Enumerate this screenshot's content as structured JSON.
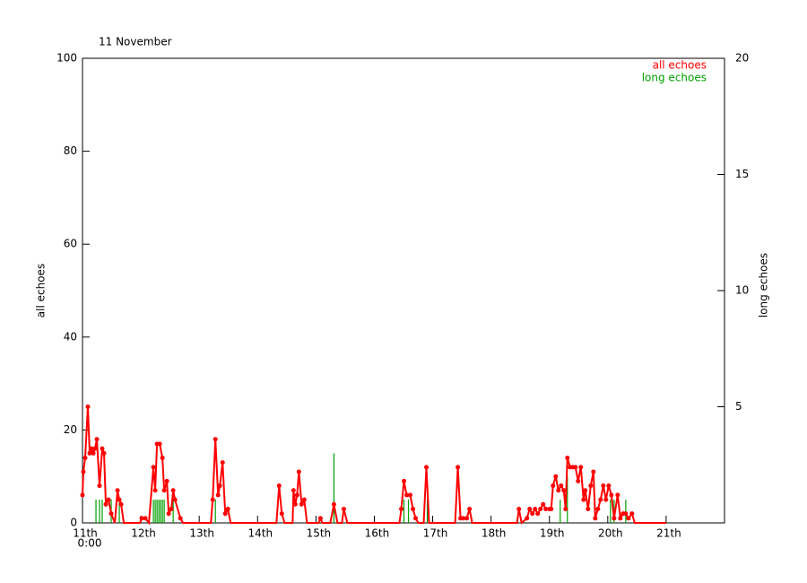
{
  "chart_data": {
    "type": "line",
    "title": "11 November",
    "ylabel": "all echoes",
    "y2label": "long echoes",
    "xlim": [
      0,
      11
    ],
    "ylim": [
      0,
      100
    ],
    "y2lim": [
      0,
      20
    ],
    "x_origin_label": "0:00",
    "xticks": [
      {
        "value": 0,
        "label": "11th"
      },
      {
        "value": 1,
        "label": "12th"
      },
      {
        "value": 2,
        "label": "13th"
      },
      {
        "value": 3,
        "label": "14th"
      },
      {
        "value": 4,
        "label": "15th"
      },
      {
        "value": 5,
        "label": "16th"
      },
      {
        "value": 6,
        "label": "17th"
      },
      {
        "value": 7,
        "label": "18th"
      },
      {
        "value": 8,
        "label": "19th"
      },
      {
        "value": 9,
        "label": "20th"
      },
      {
        "value": 10,
        "label": "21th"
      }
    ],
    "yticks": [
      0,
      20,
      40,
      60,
      80,
      100
    ],
    "y2ticks": [
      5,
      10,
      15,
      20
    ],
    "legend": "upper right",
    "series": [
      {
        "name": "all echoes",
        "color": "#ff0000",
        "mark": "line",
        "x": [
          0,
          0.015,
          0.046,
          0.092,
          0.123,
          0.154,
          0.185,
          0.215,
          0.246,
          0.292,
          0.338,
          0.369,
          0.4,
          0.446,
          0.492,
          0.554,
          0.6,
          0.631,
          0.662,
          0.708,
          0.985,
          1.015,
          1.077,
          1.138,
          1.215,
          1.246,
          1.277,
          1.323,
          1.369,
          1.4,
          1.446,
          1.477,
          1.523,
          1.554,
          1.585,
          1.677,
          1.723,
          2.2,
          2.231,
          2.277,
          2.323,
          2.354,
          2.4,
          2.446,
          2.492,
          2.538,
          3.323,
          3.369,
          3.415,
          3.462,
          3.6,
          3.615,
          3.646,
          3.677,
          3.708,
          3.754,
          3.8,
          3.846,
          4.046,
          4.077,
          4.108,
          4.246,
          4.308,
          4.369,
          4.446,
          4.477,
          4.538,
          5.431,
          5.462,
          5.508,
          5.554,
          5.615,
          5.662,
          5.708,
          5.754,
          5.846,
          5.892,
          5.938,
          6.385,
          6.431,
          6.477,
          6.523,
          6.585,
          6.631,
          6.677,
          7.446,
          7.477,
          7.523,
          7.615,
          7.662,
          7.708,
          7.754,
          7.8,
          7.846,
          7.892,
          7.938,
          8.0,
          8.031,
          8.062,
          8.108,
          8.154,
          8.2,
          8.246,
          8.277,
          8.308,
          8.354,
          8.4,
          8.446,
          8.492,
          8.538,
          8.585,
          8.615,
          8.662,
          8.708,
          8.754,
          8.785,
          8.831,
          8.877,
          8.923,
          8.969,
          9.015,
          9.062,
          9.108,
          9.169,
          9.215,
          9.262,
          9.308,
          9.354,
          9.415,
          9.462,
          10.0
        ],
        "values": [
          6,
          11,
          14,
          25,
          15,
          16,
          15,
          16,
          18,
          8,
          16,
          15,
          4,
          5,
          2,
          0,
          7,
          5,
          4,
          0,
          0,
          1,
          1,
          0,
          12,
          7,
          17,
          17,
          14,
          7,
          9,
          2,
          3,
          7,
          5,
          1,
          0,
          0,
          5,
          18,
          6,
          8,
          13,
          2,
          3,
          0,
          0,
          8,
          2,
          0,
          0,
          7,
          4,
          6,
          11,
          4,
          5,
          0,
          0,
          1,
          0,
          0,
          4,
          0,
          0,
          3,
          0,
          0,
          3,
          9,
          6,
          6,
          3,
          1,
          0,
          0,
          12,
          0,
          0,
          12,
          1,
          1,
          1,
          3,
          0,
          0,
          3,
          0,
          1,
          3,
          2,
          3,
          2,
          3,
          4,
          3,
          3,
          3,
          8,
          10,
          7,
          8,
          7,
          3,
          14,
          12,
          12,
          12,
          9,
          12,
          5,
          7,
          3,
          8,
          11,
          1,
          3,
          5,
          8,
          5,
          8,
          6,
          1,
          6,
          1,
          2,
          2,
          1,
          2,
          0,
          0
        ]
      },
      {
        "name": "long echoes",
        "color": "#00a000",
        "mark": "bar",
        "axis": "y2",
        "x": [
          0.231,
          0.292,
          0.338,
          0.492,
          0.631,
          1.215,
          1.246,
          1.277,
          1.308,
          1.338,
          1.369,
          1.4,
          1.554,
          2.277,
          4.308,
          5.508,
          5.585,
          5.908,
          8.185,
          8.308,
          9.046,
          9.108,
          9.308
        ],
        "values": [
          1,
          1,
          1,
          1,
          1,
          1,
          1,
          1,
          1,
          1,
          1,
          1,
          1,
          1,
          3,
          1,
          1,
          1,
          1,
          2,
          1,
          1,
          1
        ]
      }
    ]
  }
}
